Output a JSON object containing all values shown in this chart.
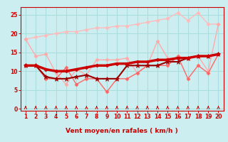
{
  "xlabel": "Vent moyen/en rafales ( km/h )",
  "ylabel": "",
  "xlim": [
    0.5,
    20.5
  ],
  "ylim": [
    -0.5,
    27
  ],
  "yticks": [
    0,
    5,
    10,
    15,
    20,
    25
  ],
  "xticks": [
    1,
    2,
    3,
    4,
    5,
    6,
    7,
    8,
    9,
    10,
    11,
    12,
    13,
    14,
    15,
    16,
    17,
    18,
    19,
    20
  ],
  "bg_color": "#cceef0",
  "grid_color": "#aadddd",
  "series": [
    {
      "x": [
        1,
        2,
        3,
        4,
        5,
        6,
        7,
        8,
        9,
        10,
        11,
        12,
        13,
        14,
        15,
        16,
        17,
        18,
        19,
        20
      ],
      "y": [
        18.5,
        19.0,
        19.5,
        20.0,
        20.5,
        20.5,
        21.0,
        21.5,
        21.5,
        22.0,
        22.0,
        22.5,
        23.0,
        23.5,
        24.0,
        25.5,
        23.5,
        25.5,
        22.5,
        22.5
      ],
      "color": "#ffbbbb",
      "lw": 1.0,
      "marker": "D",
      "ms": 2.5,
      "zorder": 2
    },
    {
      "x": [
        1,
        2,
        3,
        4,
        5,
        6,
        7,
        8,
        9,
        10,
        11,
        12,
        13,
        14,
        15,
        16,
        17,
        18,
        19,
        20
      ],
      "y": [
        18.5,
        14.0,
        14.5,
        9.5,
        6.5,
        10.5,
        9.0,
        13.0,
        13.0,
        13.0,
        13.5,
        9.5,
        11.5,
        18.0,
        13.5,
        13.5,
        13.5,
        14.0,
        10.0,
        22.5
      ],
      "color": "#ffaaaa",
      "lw": 1.0,
      "marker": "D",
      "ms": 2.5,
      "zorder": 3
    },
    {
      "x": [
        1,
        2,
        3,
        4,
        5,
        6,
        7,
        8,
        9,
        10,
        11,
        12,
        13,
        14,
        15,
        16,
        17,
        18,
        19,
        20
      ],
      "y": [
        11.5,
        11.5,
        8.0,
        8.0,
        11.0,
        6.5,
        8.0,
        8.0,
        4.5,
        8.0,
        8.0,
        9.5,
        11.5,
        11.5,
        11.5,
        14.0,
        8.0,
        11.5,
        9.5,
        14.5
      ],
      "color": "#ff6666",
      "lw": 1.0,
      "marker": "D",
      "ms": 2.5,
      "zorder": 4
    },
    {
      "x": [
        1,
        2,
        3,
        4,
        5,
        6,
        7,
        8,
        9,
        10,
        11,
        12,
        13,
        14,
        15,
        16,
        17,
        18,
        19,
        20
      ],
      "y": [
        11.5,
        11.5,
        10.5,
        10.0,
        10.0,
        10.5,
        11.0,
        11.5,
        11.5,
        12.0,
        12.0,
        12.5,
        12.5,
        13.0,
        13.0,
        13.5,
        13.5,
        14.0,
        14.0,
        14.5
      ],
      "color": "#cc0000",
      "lw": 2.5,
      "marker": "D",
      "ms": 2.5,
      "zorder": 6
    },
    {
      "x": [
        1,
        2,
        3,
        4,
        5,
        6,
        7,
        8,
        9,
        10,
        11,
        12,
        13,
        14,
        15,
        16,
        17,
        18,
        19,
        20
      ],
      "y": [
        11.5,
        11.5,
        8.5,
        8.0,
        8.0,
        8.5,
        9.0,
        8.0,
        8.0,
        8.0,
        11.5,
        11.5,
        11.5,
        11.5,
        12.5,
        12.5,
        13.5,
        14.0,
        14.0,
        14.5
      ],
      "color": "#990000",
      "lw": 1.5,
      "marker": "*",
      "ms": 5,
      "zorder": 5
    }
  ],
  "arrow_color": "#cc0000",
  "tick_color": "#cc0000",
  "label_color": "#cc0000"
}
